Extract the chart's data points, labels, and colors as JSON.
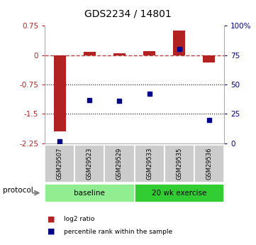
{
  "title": "GDS2234 / 14801",
  "samples": [
    "GSM29507",
    "GSM29523",
    "GSM29529",
    "GSM29533",
    "GSM29535",
    "GSM29536"
  ],
  "log2_ratio": [
    -1.95,
    0.08,
    0.05,
    0.1,
    0.62,
    -0.18
  ],
  "percentile_rank": [
    1.5,
    37.0,
    36.0,
    42.0,
    80.0,
    20.0
  ],
  "ylim_left": [
    -2.25,
    0.75
  ],
  "ylim_right": [
    0,
    100
  ],
  "left_ticks": [
    0.75,
    0,
    -0.75,
    -1.5,
    -2.25
  ],
  "right_ticks": [
    100,
    75,
    50,
    25,
    0
  ],
  "hlines": [
    -0.75,
    -1.5
  ],
  "dashed_hline": 0.0,
  "bar_color": "#b22222",
  "dot_color": "#00008b",
  "groups": [
    {
      "label": "baseline",
      "n": 3,
      "color": "#90EE90"
    },
    {
      "label": "20 wk exercise",
      "n": 3,
      "color": "#32CD32"
    }
  ],
  "protocol_label": "protocol",
  "legend_items": [
    {
      "label": "log2 ratio",
      "color": "#b22222"
    },
    {
      "label": "percentile rank within the sample",
      "color": "#00008b"
    }
  ],
  "bg_color": "#ffffff",
  "plot_bg": "#ffffff",
  "sample_box_color": "#cccccc"
}
